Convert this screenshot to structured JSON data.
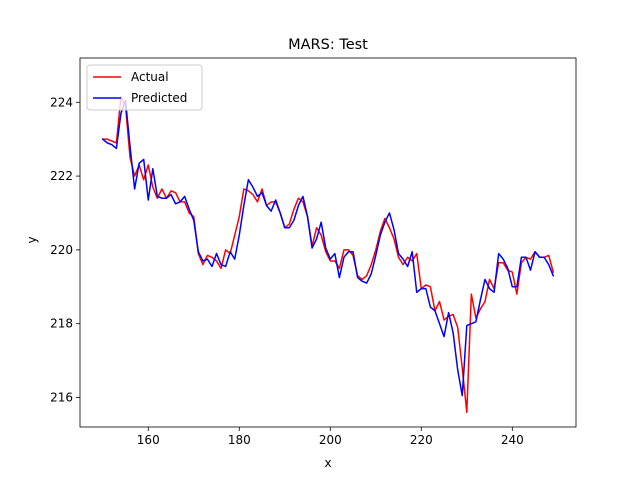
{
  "chart_data": {
    "type": "line",
    "title": "MARS: Test",
    "xlabel": "x",
    "ylabel": "y",
    "xlim": [
      145,
      254
    ],
    "ylim": [
      215.2,
      225.2
    ],
    "xticks": [
      160,
      180,
      200,
      220,
      240
    ],
    "yticks": [
      216,
      218,
      220,
      222,
      224
    ],
    "legend": "upper-left",
    "grid": false,
    "x": [
      150,
      151,
      152,
      153,
      154,
      155,
      156,
      157,
      158,
      159,
      160,
      161,
      162,
      163,
      164,
      165,
      166,
      167,
      168,
      169,
      170,
      171,
      172,
      173,
      174,
      175,
      176,
      177,
      178,
      179,
      180,
      181,
      182,
      183,
      184,
      185,
      186,
      187,
      188,
      189,
      190,
      191,
      192,
      193,
      194,
      195,
      196,
      197,
      198,
      199,
      200,
      201,
      202,
      203,
      204,
      205,
      206,
      207,
      208,
      209,
      210,
      211,
      212,
      213,
      214,
      215,
      216,
      217,
      218,
      219,
      220,
      221,
      222,
      223,
      224,
      225,
      226,
      227,
      228,
      229,
      230,
      231,
      232,
      233,
      234,
      235,
      236,
      237,
      238,
      239,
      240,
      241,
      242,
      243,
      244,
      245,
      246,
      247,
      248,
      249
    ],
    "series": [
      {
        "name": "Actual",
        "color": "#ff0000",
        "values": [
          223.0,
          223.0,
          222.95,
          222.9,
          224.15,
          223.9,
          222.5,
          222.0,
          222.3,
          221.9,
          222.3,
          221.7,
          221.4,
          221.65,
          221.4,
          221.6,
          221.55,
          221.3,
          221.3,
          221.0,
          220.9,
          219.9,
          219.6,
          219.85,
          219.8,
          219.7,
          219.5,
          220.0,
          219.9,
          220.4,
          220.9,
          221.65,
          221.6,
          221.5,
          221.3,
          221.65,
          221.2,
          221.3,
          221.3,
          221.0,
          220.6,
          220.7,
          221.1,
          221.4,
          221.3,
          220.9,
          220.1,
          220.6,
          220.4,
          219.95,
          219.7,
          219.7,
          219.5,
          220.0,
          220.0,
          219.85,
          219.3,
          219.2,
          219.3,
          219.6,
          220.0,
          220.5,
          220.85,
          220.6,
          220.3,
          219.8,
          219.6,
          219.8,
          219.7,
          219.9,
          218.95,
          219.05,
          219.0,
          218.35,
          218.6,
          218.1,
          218.2,
          218.25,
          217.9,
          216.8,
          215.6,
          218.8,
          218.15,
          218.4,
          218.6,
          219.2,
          218.95,
          219.65,
          219.65,
          219.45,
          219.4,
          218.8,
          219.65,
          219.8,
          219.75,
          219.95,
          219.8,
          219.8,
          219.85,
          219.4
        ],
        "color_name": "red"
      },
      {
        "name": "Predicted",
        "color": "#0000ff",
        "values": [
          223.0,
          222.9,
          222.85,
          222.75,
          223.7,
          224.05,
          222.8,
          221.65,
          222.35,
          222.45,
          221.35,
          222.2,
          221.45,
          221.4,
          221.4,
          221.5,
          221.25,
          221.3,
          221.45,
          221.1,
          220.8,
          219.95,
          219.7,
          219.75,
          219.55,
          219.9,
          219.6,
          219.55,
          219.95,
          219.75,
          220.4,
          221.2,
          221.9,
          221.7,
          221.45,
          221.55,
          221.2,
          221.05,
          221.35,
          221.0,
          220.6,
          220.6,
          220.8,
          221.2,
          221.45,
          220.9,
          220.05,
          220.3,
          220.75,
          220.05,
          219.75,
          219.9,
          219.25,
          219.8,
          219.95,
          219.95,
          219.25,
          219.15,
          219.1,
          219.35,
          219.85,
          220.4,
          220.75,
          221.0,
          220.55,
          219.9,
          219.75,
          219.55,
          219.95,
          218.85,
          218.95,
          218.95,
          218.45,
          218.35,
          218.0,
          217.65,
          218.3,
          217.75,
          216.75,
          216.05,
          217.95,
          218.0,
          218.05,
          218.65,
          219.2,
          218.95,
          218.85,
          219.9,
          219.75,
          219.5,
          219.0,
          219.0,
          219.8,
          219.8,
          219.45,
          219.95,
          219.8,
          219.8,
          219.6,
          219.3
        ],
        "color_name": "blue"
      }
    ]
  }
}
